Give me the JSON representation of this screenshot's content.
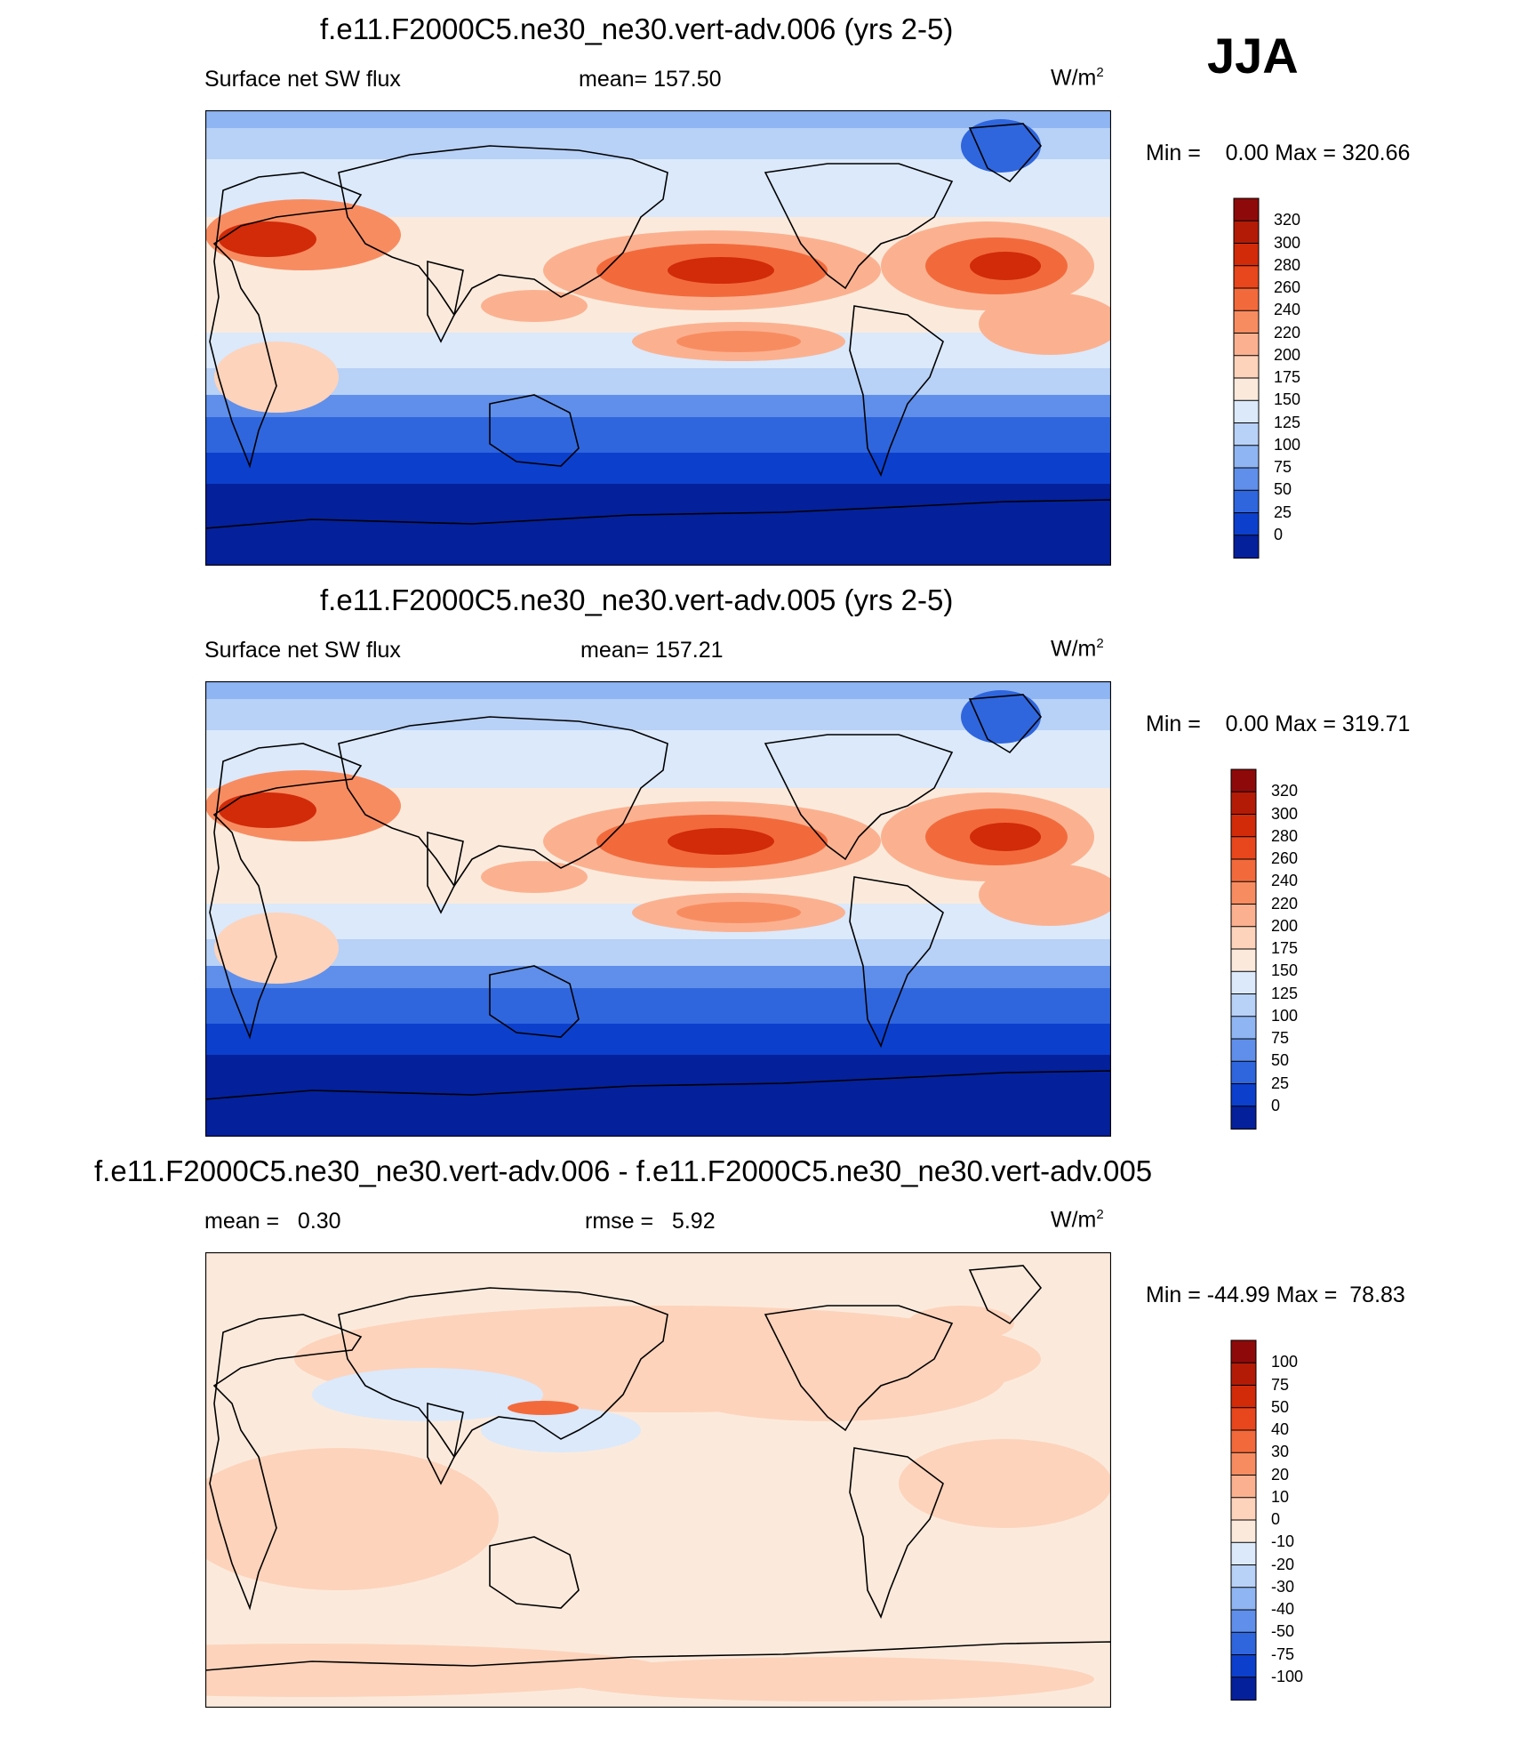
{
  "season": "JJA",
  "panels": [
    {
      "title": "f.e11.F2000C5.ne30_ne30.vert-adv.006 (yrs 2-5)",
      "left_label": "Surface net SW flux",
      "center_label": "mean= 157.50",
      "units_base": "W/m",
      "units_sup": "2",
      "minmax": "Min =    0.00 Max = 320.66"
    },
    {
      "title": "f.e11.F2000C5.ne30_ne30.vert-adv.005 (yrs 2-5)",
      "left_label": "Surface net SW flux",
      "center_label": "mean= 157.21",
      "units_base": "W/m",
      "units_sup": "2",
      "minmax": "Min =    0.00 Max = 319.71"
    },
    {
      "title": "f.e11.F2000C5.ne30_ne30.vert-adv.006 - f.e11.F2000C5.ne30_ne30.vert-adv.005",
      "left_label": "mean =   0.30",
      "center_label": "rmse =   5.92",
      "units_base": "W/m",
      "units_sup": "2",
      "minmax": "Min = -44.99 Max =  78.83"
    }
  ],
  "chart_data": [
    {
      "type": "heatmap",
      "title": "f.e11.F2000C5.ne30_ne30.vert-adv.006 (yrs 2-5)",
      "variable": "Surface net SW flux",
      "units": "W/m2",
      "mean": 157.5,
      "min": 0.0,
      "max": 320.66,
      "colorbar_levels": [
        "320",
        "300",
        "280",
        "260",
        "240",
        "220",
        "200",
        "175",
        "150",
        "125",
        "100",
        "75",
        "50",
        "25",
        "0"
      ],
      "colorbar_colors": [
        "#8e0a0a",
        "#b31b06",
        "#d12b0a",
        "#e8461c",
        "#f26a3c",
        "#f88c61",
        "#fbb190",
        "#fdd3bb",
        "#fbeadc",
        "#dbe9fb",
        "#b8d1f7",
        "#8fb5f2",
        "#5f8fea",
        "#2f66dd",
        "#0c3fcc",
        "#04209a"
      ]
    },
    {
      "type": "heatmap",
      "title": "f.e11.F2000C5.ne30_ne30.vert-adv.005 (yrs 2-5)",
      "variable": "Surface net SW flux",
      "units": "W/m2",
      "mean": 157.21,
      "min": 0.0,
      "max": 319.71,
      "colorbar_levels": [
        "320",
        "300",
        "280",
        "260",
        "240",
        "220",
        "200",
        "175",
        "150",
        "125",
        "100",
        "75",
        "50",
        "25",
        "0"
      ],
      "colorbar_colors": [
        "#8e0a0a",
        "#b31b06",
        "#d12b0a",
        "#e8461c",
        "#f26a3c",
        "#f88c61",
        "#fbb190",
        "#fdd3bb",
        "#fbeadc",
        "#dbe9fb",
        "#b8d1f7",
        "#8fb5f2",
        "#5f8fea",
        "#2f66dd",
        "#0c3fcc",
        "#04209a"
      ]
    },
    {
      "type": "heatmap",
      "title": "f.e11.F2000C5.ne30_ne30.vert-adv.006 - f.e11.F2000C5.ne30_ne30.vert-adv.005",
      "units": "W/m2",
      "mean": 0.3,
      "rmse": 5.92,
      "min": -44.99,
      "max": 78.83,
      "colorbar_levels": [
        "100",
        "75",
        "50",
        "40",
        "30",
        "20",
        "10",
        "0",
        "-10",
        "-20",
        "-30",
        "-40",
        "-50",
        "-75",
        "-100"
      ],
      "colorbar_colors": [
        "#8e0a0a",
        "#b31b06",
        "#d12b0a",
        "#e8461c",
        "#f26a3c",
        "#f88c61",
        "#fbb190",
        "#fdd3bb",
        "#fbeadc",
        "#dbe9fb",
        "#b8d1f7",
        "#8fb5f2",
        "#5f8fea",
        "#2f66dd",
        "#0c3fcc",
        "#04209a"
      ]
    }
  ]
}
